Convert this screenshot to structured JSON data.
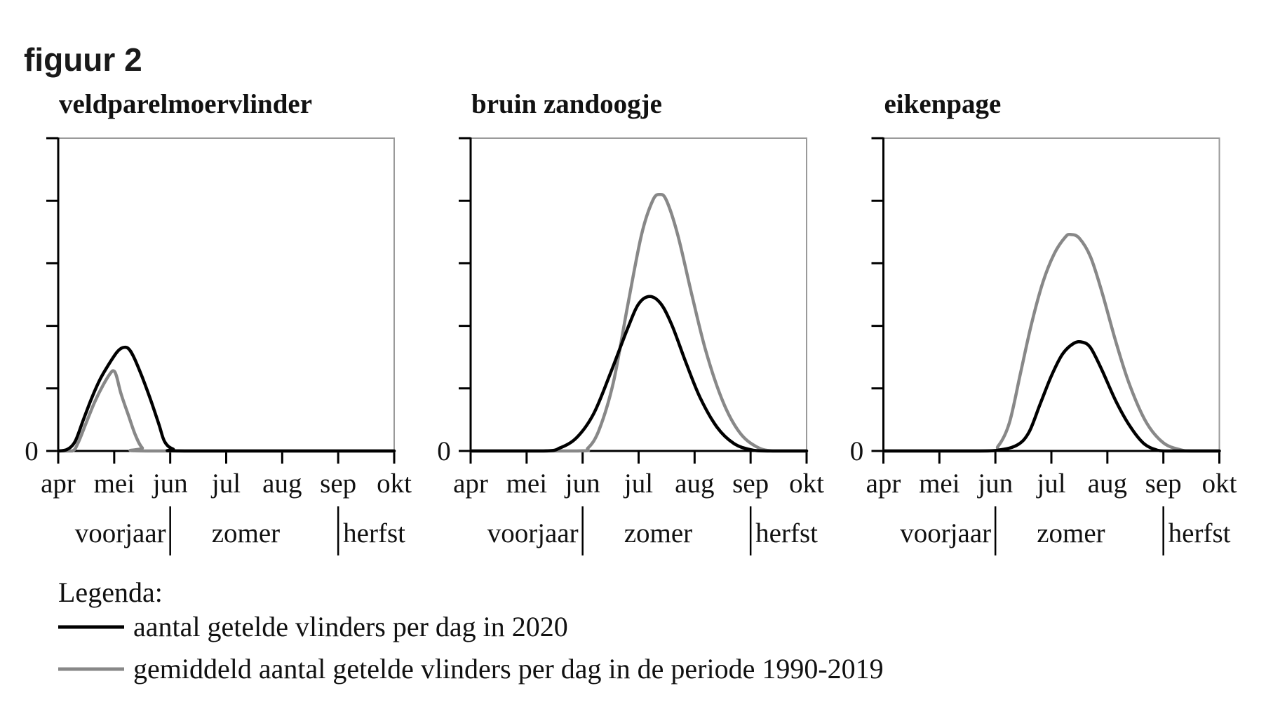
{
  "figure": {
    "title": "figuur 2"
  },
  "colors": {
    "series_2020": "#000000",
    "series_avg": "#888888",
    "frame": "#9a9a9a",
    "axis": "#000000"
  },
  "legend": {
    "heading": "Legenda:",
    "items": [
      {
        "label": "aantal getelde vlinders per dag in 2020",
        "color": "#000000"
      },
      {
        "label": "gemiddeld aantal getelde vlinders per dag in de periode 1990-2019",
        "color": "#888888"
      }
    ]
  },
  "axes": {
    "x_ticks": [
      "apr",
      "mei",
      "jun",
      "jul",
      "aug",
      "sep",
      "okt"
    ],
    "y_zero_label": "0",
    "y_tick_count": 5,
    "seasons": [
      {
        "label": "voorjaar",
        "from": 0,
        "to": 2
      },
      {
        "label": "zomer",
        "from": 2,
        "to": 5
      },
      {
        "label": "herfst",
        "from": 5,
        "to": 6
      }
    ],
    "season_dividers": [
      2,
      5
    ]
  },
  "chart_data": [
    {
      "type": "line",
      "title": "veldparelmoervlinder",
      "xlabel": "",
      "ylabel": "",
      "categories": [
        "apr",
        "mei",
        "jun",
        "jul",
        "aug",
        "sep",
        "okt"
      ],
      "xlim": [
        0,
        6
      ],
      "ylim": [
        0,
        5
      ],
      "grid": false,
      "series": [
        {
          "name": "aantal getelde vlinders per dag in 2020",
          "color": "#000000",
          "points": [
            [
              0,
              0
            ],
            [
              0.15,
              0.02
            ],
            [
              0.3,
              0.15
            ],
            [
              0.45,
              0.5
            ],
            [
              0.6,
              0.85
            ],
            [
              0.75,
              1.15
            ],
            [
              0.9,
              1.38
            ],
            [
              1.05,
              1.58
            ],
            [
              1.15,
              1.65
            ],
            [
              1.25,
              1.64
            ],
            [
              1.35,
              1.5
            ],
            [
              1.5,
              1.18
            ],
            [
              1.65,
              0.82
            ],
            [
              1.8,
              0.42
            ],
            [
              1.9,
              0.15
            ],
            [
              2.05,
              0.03
            ],
            [
              2.3,
              0
            ],
            [
              6,
              0
            ]
          ]
        },
        {
          "name": "gemiddeld aantal getelde vlinders per dag in de periode 1990-2019",
          "color": "#888888",
          "points": [
            [
              0,
              0
            ],
            [
              0.25,
              0
            ],
            [
              0.35,
              0.12
            ],
            [
              0.5,
              0.45
            ],
            [
              0.65,
              0.78
            ],
            [
              0.8,
              1.05
            ],
            [
              0.93,
              1.24
            ],
            [
              0.99,
              1.28
            ],
            [
              1.04,
              1.2
            ],
            [
              1.12,
              0.92
            ],
            [
              1.25,
              0.58
            ],
            [
              1.38,
              0.25
            ],
            [
              1.5,
              0.05
            ],
            [
              1.65,
              0
            ],
            [
              6,
              0
            ]
          ]
        }
      ]
    },
    {
      "type": "line",
      "title": "bruin zandoogje",
      "xlabel": "",
      "ylabel": "",
      "categories": [
        "apr",
        "mei",
        "jun",
        "jul",
        "aug",
        "sep",
        "okt"
      ],
      "xlim": [
        0,
        6
      ],
      "ylim": [
        0,
        5
      ],
      "grid": false,
      "series": [
        {
          "name": "aantal getelde vlinders per dag in 2020",
          "color": "#000000",
          "points": [
            [
              0,
              0
            ],
            [
              1.3,
              0
            ],
            [
              1.6,
              0.05
            ],
            [
              1.9,
              0.22
            ],
            [
              2.2,
              0.6
            ],
            [
              2.5,
              1.25
            ],
            [
              2.8,
              1.95
            ],
            [
              3.0,
              2.35
            ],
            [
              3.2,
              2.47
            ],
            [
              3.4,
              2.35
            ],
            [
              3.6,
              2.0
            ],
            [
              3.85,
              1.4
            ],
            [
              4.1,
              0.85
            ],
            [
              4.4,
              0.38
            ],
            [
              4.7,
              0.12
            ],
            [
              5.0,
              0.02
            ],
            [
              5.3,
              0
            ],
            [
              6,
              0
            ]
          ]
        },
        {
          "name": "gemiddeld aantal getelde vlinders per dag in de periode 1990-2019",
          "color": "#888888",
          "points": [
            [
              0,
              0
            ],
            [
              1.9,
              0
            ],
            [
              2.1,
              0.05
            ],
            [
              2.3,
              0.35
            ],
            [
              2.55,
              1.1
            ],
            [
              2.8,
              2.3
            ],
            [
              3.05,
              3.45
            ],
            [
              3.25,
              4.0
            ],
            [
              3.38,
              4.1
            ],
            [
              3.5,
              4.0
            ],
            [
              3.7,
              3.45
            ],
            [
              3.95,
              2.5
            ],
            [
              4.2,
              1.6
            ],
            [
              4.5,
              0.8
            ],
            [
              4.8,
              0.3
            ],
            [
              5.1,
              0.07
            ],
            [
              5.4,
              0
            ],
            [
              6,
              0
            ]
          ]
        }
      ]
    },
    {
      "type": "line",
      "title": "eikenpage",
      "xlabel": "",
      "ylabel": "",
      "categories": [
        "apr",
        "mei",
        "jun",
        "jul",
        "aug",
        "sep",
        "okt"
      ],
      "xlim": [
        0,
        6
      ],
      "ylim": [
        0,
        5
      ],
      "grid": false,
      "series": [
        {
          "name": "aantal getelde vlinders per dag in 2020",
          "color": "#000000",
          "points": [
            [
              0,
              0
            ],
            [
              1.7,
              0
            ],
            [
              2.1,
              0.02
            ],
            [
              2.4,
              0.1
            ],
            [
              2.6,
              0.3
            ],
            [
              2.8,
              0.75
            ],
            [
              3.0,
              1.2
            ],
            [
              3.2,
              1.55
            ],
            [
              3.4,
              1.72
            ],
            [
              3.55,
              1.74
            ],
            [
              3.7,
              1.65
            ],
            [
              3.9,
              1.3
            ],
            [
              4.15,
              0.8
            ],
            [
              4.4,
              0.4
            ],
            [
              4.65,
              0.12
            ],
            [
              4.9,
              0.01
            ],
            [
              5.1,
              0
            ],
            [
              6,
              0
            ]
          ]
        },
        {
          "name": "gemiddeld aantal getelde vlinders per dag in de periode 1990-2019",
          "color": "#888888",
          "points": [
            [
              0,
              0
            ],
            [
              1.85,
              0
            ],
            [
              2.05,
              0.08
            ],
            [
              2.25,
              0.45
            ],
            [
              2.45,
              1.25
            ],
            [
              2.65,
              2.05
            ],
            [
              2.85,
              2.7
            ],
            [
              3.05,
              3.15
            ],
            [
              3.25,
              3.42
            ],
            [
              3.35,
              3.46
            ],
            [
              3.5,
              3.4
            ],
            [
              3.7,
              3.1
            ],
            [
              3.9,
              2.55
            ],
            [
              4.15,
              1.75
            ],
            [
              4.4,
              1.05
            ],
            [
              4.7,
              0.45
            ],
            [
              5.0,
              0.13
            ],
            [
              5.3,
              0.02
            ],
            [
              5.5,
              0
            ],
            [
              6,
              0
            ]
          ]
        }
      ]
    }
  ]
}
